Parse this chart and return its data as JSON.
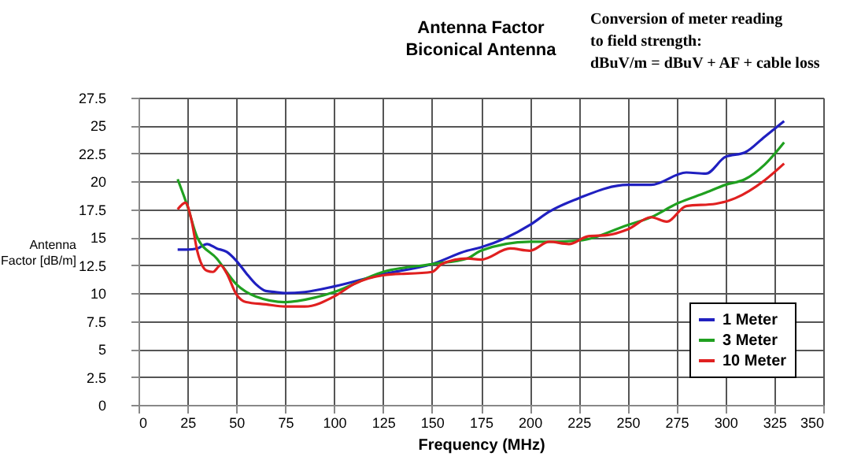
{
  "chart_data": {
    "type": "line",
    "title": "Antenna Factor",
    "subtitle": "Biconical Antenna",
    "xlabel": "Frequency (MHz)",
    "ylabel": "Antenna Factor [dB/m]",
    "annotations": [
      "Conversion of meter reading",
      "to field strength:",
      "dBuV/m = dBuV + AF + cable loss"
    ],
    "xlim": [
      0,
      350
    ],
    "xticks": [
      0,
      25,
      50,
      75,
      100,
      125,
      150,
      175,
      200,
      225,
      250,
      275,
      300,
      325,
      350
    ],
    "ylim": [
      0,
      27.5
    ],
    "yticks": [
      0,
      2.5,
      5,
      7.5,
      10,
      12.5,
      15,
      17.5,
      20,
      22.5,
      25,
      27.5
    ],
    "grid": true,
    "legend": "bottom right",
    "marker": "none",
    "line_style": "solid",
    "series": [
      {
        "name": "1 Meter",
        "color": "#2020c0",
        "x": [
          20,
          25,
          30,
          35,
          40,
          45,
          50,
          55,
          60,
          65,
          70,
          75,
          85,
          100,
          125,
          150,
          168,
          175,
          200,
          210,
          225,
          250,
          262,
          280,
          290,
          300,
          310,
          320,
          330
        ],
        "values": [
          13.9,
          13.9,
          14,
          14.4,
          14,
          13.7,
          12.9,
          11.8,
          10.8,
          10.2,
          10.1,
          10.0,
          10.1,
          10.6,
          11.7,
          12.6,
          13.8,
          14.1,
          16.1,
          17.3,
          18.5,
          19.7,
          19.7,
          20.8,
          20.7,
          22.2,
          22.6,
          24,
          25.4
        ]
      },
      {
        "name": "3 Meter",
        "color": "#20a020",
        "x": [
          20,
          25,
          30,
          40,
          50,
          60,
          75,
          90,
          100,
          125,
          150,
          168,
          175,
          200,
          210,
          225,
          250,
          262,
          275,
          290,
          300,
          310,
          320,
          330
        ],
        "values": [
          20.2,
          17.8,
          15,
          13.1,
          10.8,
          9.7,
          9.2,
          9.6,
          10.1,
          11.9,
          12.6,
          13.1,
          13.8,
          14.6,
          14.6,
          14.7,
          16.1,
          16.8,
          18,
          19,
          19.7,
          20.2,
          21.5,
          23.5
        ]
      },
      {
        "name": "10 Meter",
        "color": "#e02020",
        "x": [
          20,
          24,
          27,
          30,
          35,
          38,
          42,
          45,
          50,
          55,
          65,
          75,
          85,
          100,
          110,
          125,
          150,
          155,
          168,
          175,
          190,
          200,
          210,
          220,
          230,
          240,
          250,
          262,
          270,
          280,
          295,
          305,
          320,
          330
        ],
        "values": [
          17.5,
          18.1,
          16.6,
          13.8,
          12,
          11.9,
          12.5,
          11.8,
          9.9,
          9.2,
          9,
          8.8,
          8.8,
          9.7,
          10.8,
          11.6,
          11.9,
          12.6,
          13.1,
          13,
          14,
          13.8,
          14.6,
          14.4,
          15.1,
          15.2,
          15.7,
          16.8,
          16.4,
          17.8,
          18,
          18.5,
          20.1,
          21.6
        ]
      }
    ]
  }
}
